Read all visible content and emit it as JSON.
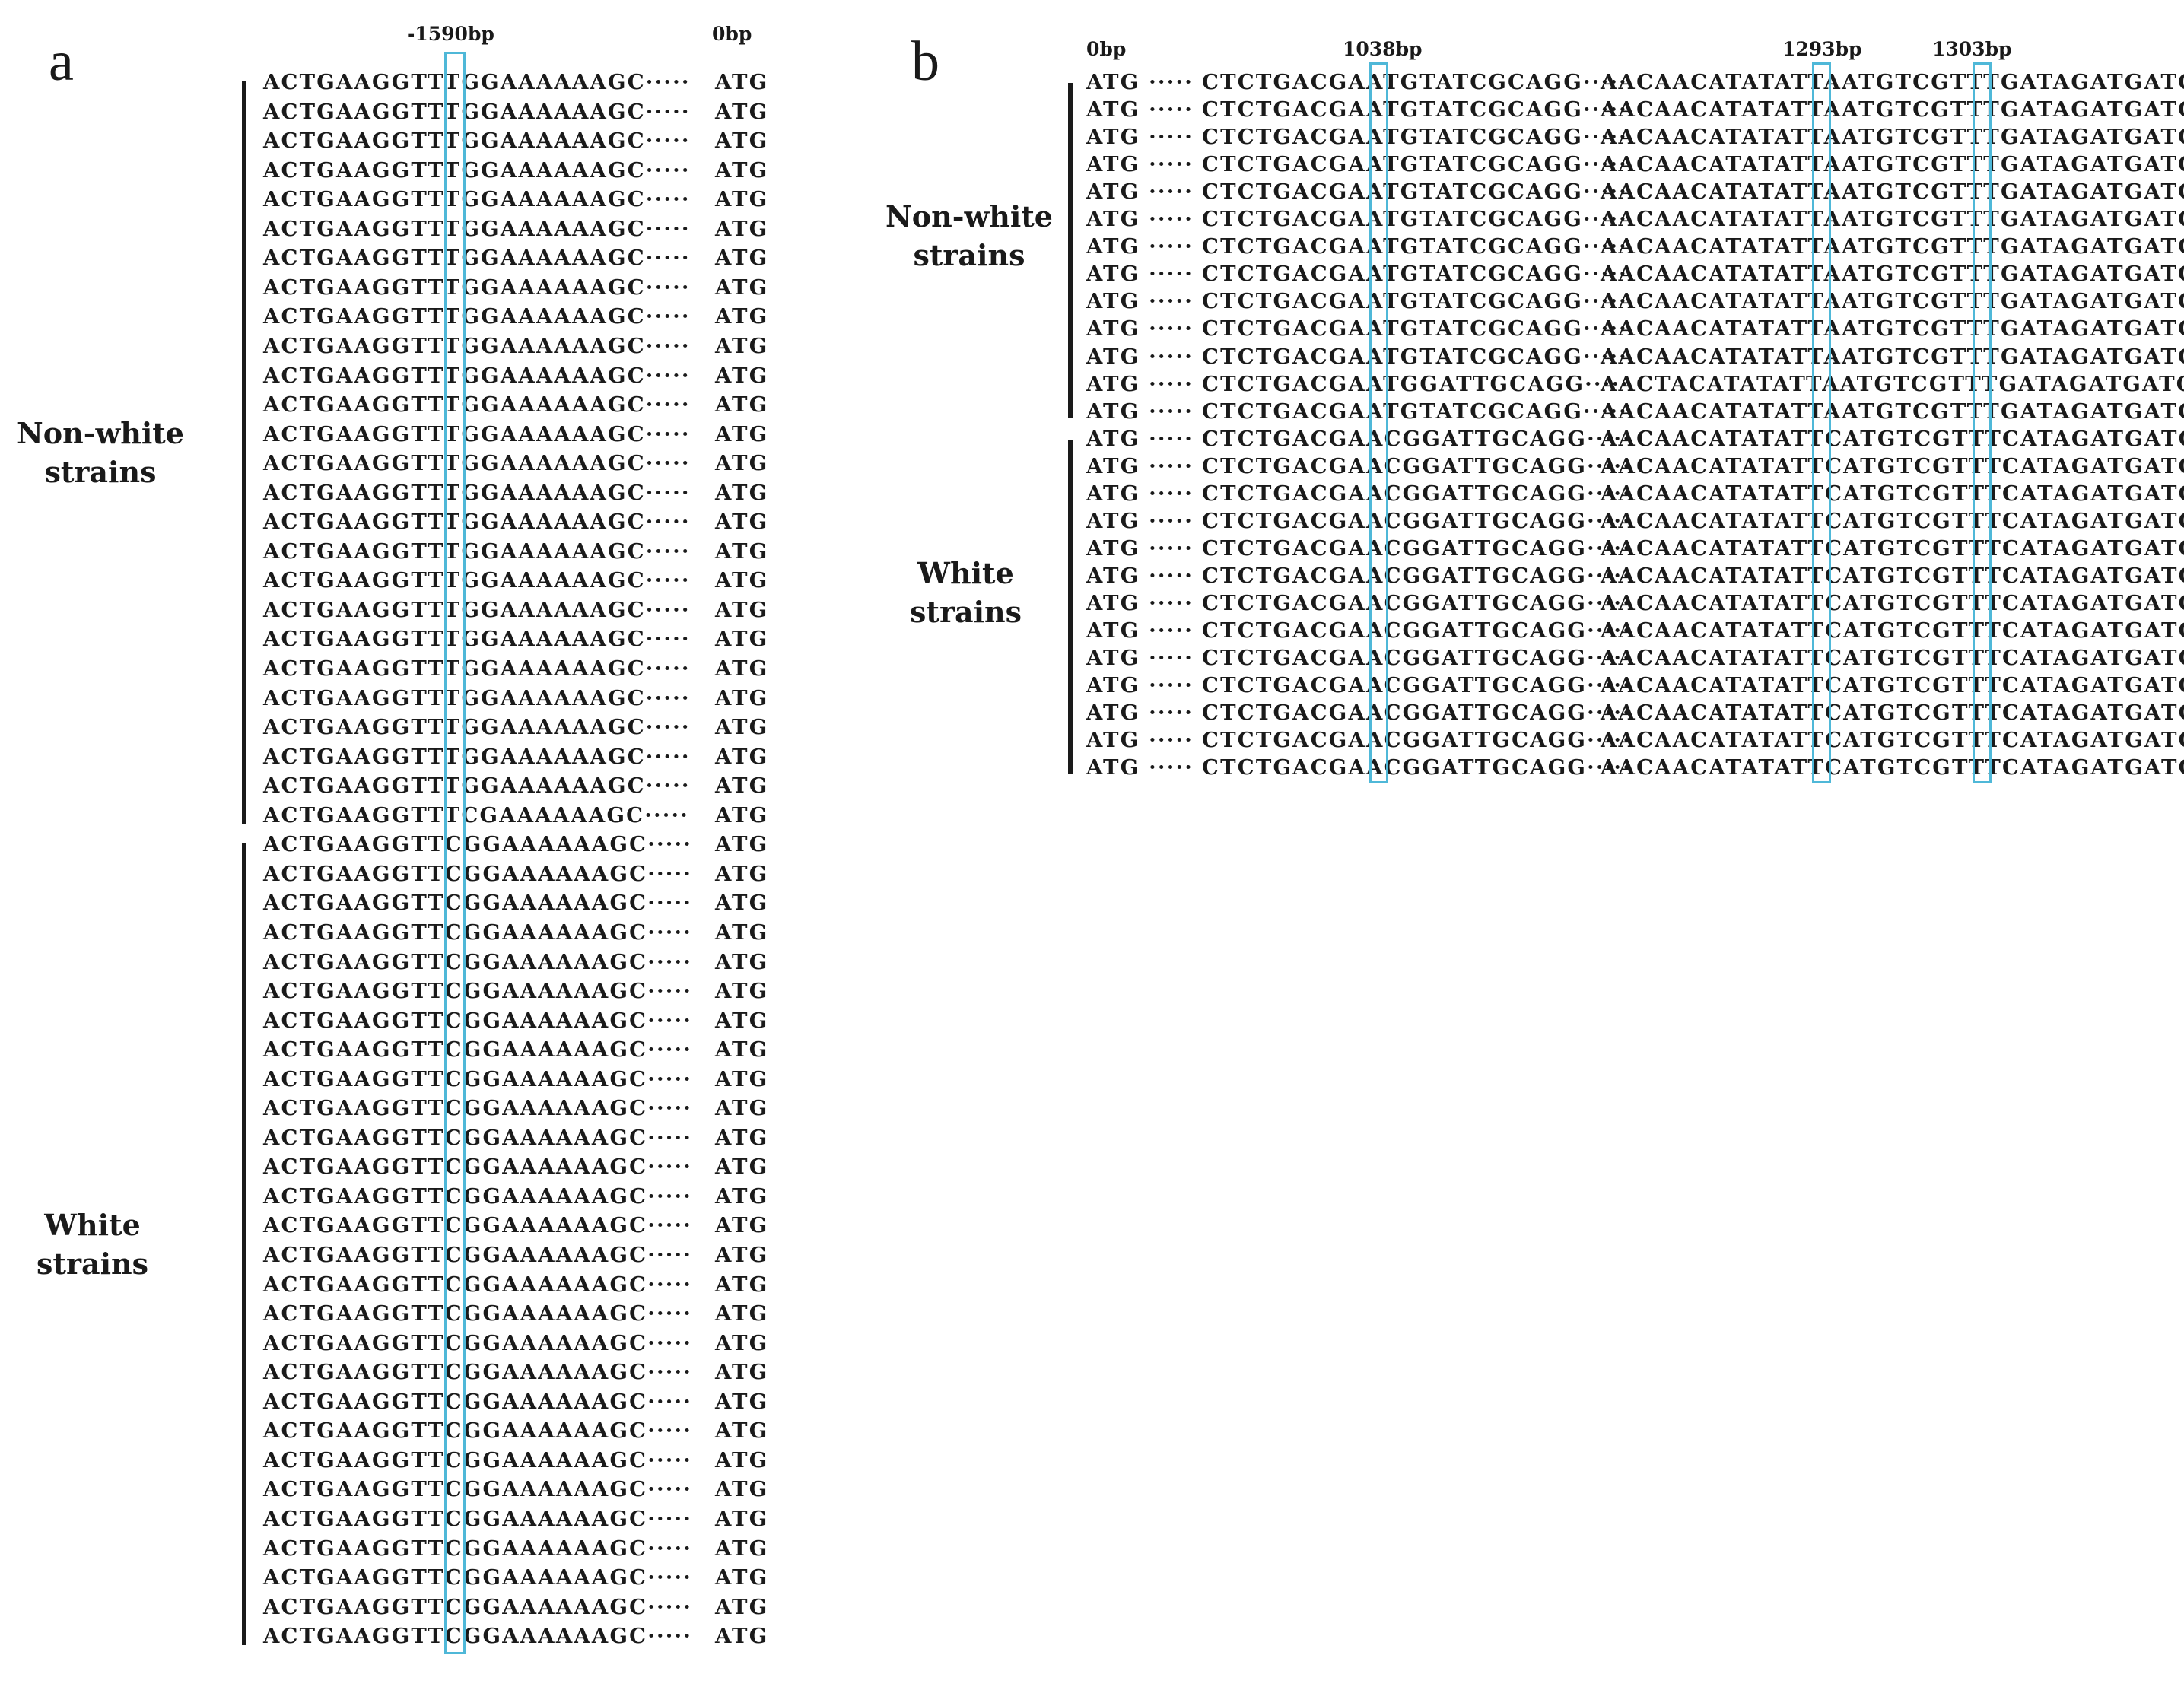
{
  "panels": {
    "a": {
      "letter": "a",
      "position_labels": [
        "-1590bp",
        "0bp"
      ],
      "groups": [
        {
          "name": "Non-white\nstrains",
          "rows": [
            "ACTGAAGGTTTGGAAAAAAGC·····",
            "ACTGAAGGTTTGGAAAAAAGC·····",
            "ACTGAAGGTTTGGAAAAAAGC·····",
            "ACTGAAGGTTTGGAAAAAAGC·····",
            "ACTGAAGGTTTGGAAAAAAGC·····",
            "ACTGAAGGTTTGGAAAAAAGC·····",
            "ACTGAAGGTTTGGAAAAAAGC·····",
            "ACTGAAGGTTTGGAAAAAAGC·····",
            "ACTGAAGGTTTGGAAAAAAGC·····",
            "ACTGAAGGTTTGGAAAAAAGC·····",
            "ACTGAAGGTTTGGAAAAAAGC·····",
            "ACTGAAGGTTTGGAAAAAAGC·····",
            "ACTGAAGGTTTGGAAAAAAGC·····",
            "ACTGAAGGTTTGGAAAAAAGC·····",
            "ACTGAAGGTTTGGAAAAAAGC·····",
            "ACTGAAGGTTTGGAAAAAAGC·····",
            "ACTGAAGGTTTGGAAAAAAGC·····",
            "ACTGAAGGTTTGGAAAAAAGC·····",
            "ACTGAAGGTTTGGAAAAAAGC·····",
            "ACTGAAGGTTTGGAAAAAAGC·····",
            "ACTGAAGGTTTGGAAAAAAGC·····",
            "ACTGAAGGTTTGGAAAAAAGC·····",
            "ACTGAAGGTTTGGAAAAAAGC·····",
            "ACTGAAGGTTTGGAAAAAAGC·····",
            "ACTGAAGGTTTGGAAAAAAGC·····",
            "ACTGAAGGTTTCGAAAAAAGC·····"
          ]
        },
        {
          "name": "White\nstrains",
          "rows": [
            "ACTGAAGGTTCGGAAAAAAGC·····",
            "ACTGAAGGTTCGGAAAAAAGC·····",
            "ACTGAAGGTTCGGAAAAAAGC·····",
            "ACTGAAGGTTCGGAAAAAAGC·····",
            "ACTGAAGGTTCGGAAAAAAGC·····",
            "ACTGAAGGTTCGGAAAAAAGC·····",
            "ACTGAAGGTTCGGAAAAAAGC·····",
            "ACTGAAGGTTCGGAAAAAAGC·····",
            "ACTGAAGGTTCGGAAAAAAGC·····",
            "ACTGAAGGTTCGGAAAAAAGC·····",
            "ACTGAAGGTTCGGAAAAAAGC·····",
            "ACTGAAGGTTCGGAAAAAAGC·····",
            "ACTGAAGGTTCGGAAAAAAGC·····",
            "ACTGAAGGTTCGGAAAAAAGC·····",
            "ACTGAAGGTTCGGAAAAAAGC·····",
            "ACTGAAGGTTCGGAAAAAAGC·····",
            "ACTGAAGGTTCGGAAAAAAGC·····",
            "ACTGAAGGTTCGGAAAAAAGC·····",
            "ACTGAAGGTTCGGAAAAAAGC·····",
            "ACTGAAGGTTCGGAAAAAAGC·····",
            "ACTGAAGGTTCGGAAAAAAGC·····",
            "ACTGAAGGTTCGGAAAAAAGC·····",
            "ACTGAAGGTTCGGAAAAAAGC·····",
            "ACTGAAGGTTCGGAAAAAAGC·····",
            "ACTGAAGGTTCGGAAAAAAGC·····",
            "ACTGAAGGTTCGGAAAAAAGC·····",
            "ACTGAAGGTTCGGAAAAAAGC·····",
            "ACTGAAGGTTCGGAAAAAAGC·····"
          ]
        }
      ],
      "tail": "ATG"
    },
    "b": {
      "letter": "b",
      "position_labels": [
        "0bp",
        "1038bp",
        "1293bp",
        "1303bp"
      ],
      "head": "ATG ·····",
      "groups": [
        {
          "name": "Non-white\nstrains",
          "rows": [
            [
              "CTCTGACGAATGTATCGCAGG·····",
              "AACAACATATATTAATGTCGTTTGATAGATGATC"
            ],
            [
              "CTCTGACGAATGTATCGCAGG·····",
              "AACAACATATATTAATGTCGTTTGATAGATGATC"
            ],
            [
              "CTCTGACGAATGTATCGCAGG·····",
              "AACAACATATATTAATGTCGTTTGATAGATGATC"
            ],
            [
              "CTCTGACGAATGTATCGCAGG·····",
              "AACAACATATATTAATGTCGTTTGATAGATGATC"
            ],
            [
              "CTCTGACGAATGTATCGCAGG·····",
              "AACAACATATATTAATGTCGTTTGATAGATGATC"
            ],
            [
              "CTCTGACGAATGTATCGCAGG·····",
              "AACAACATATATTAATGTCGTTTGATAGATGATC"
            ],
            [
              "CTCTGACGAATGTATCGCAGG·····",
              "AACAACATATATTAATGTCGTTTGATAGATGATC"
            ],
            [
              "CTCTGACGAATGTATCGCAGG·····",
              "AACAACATATATTAATGTCGTTTGATAGATGATC"
            ],
            [
              "CTCTGACGAATGTATCGCAGG·····",
              "AACAACATATATTAATGTCGTTTGATAGATGATC"
            ],
            [
              "CTCTGACGAATGTATCGCAGG·····",
              "AACAACATATATTAATGTCGTTTGATAGATGATC"
            ],
            [
              "CTCTGACGAATGTATCGCAGG·····",
              "AACAACATATATTAATGTCGTTTGATAGATGATC"
            ],
            [
              "CTCTGACGAATGGATTGCAGG·····",
              "AACTACATATATTAATGTCGTTTGATAGATGATC"
            ],
            [
              "CTCTGACGAATGTATCGCAGG·····",
              "AACAACATATATTAATGTCGTTTGATAGATGATC"
            ]
          ]
        },
        {
          "name": "White\nstrains",
          "rows": [
            [
              "CTCTGACGAACGGATTGCAGG·····",
              "AACAACATATATTCATGTCGTTTCATAGATGATC"
            ],
            [
              "CTCTGACGAACGGATTGCAGG·····",
              "AACAACATATATTCATGTCGTTTCATAGATGATC"
            ],
            [
              "CTCTGACGAACGGATTGCAGG·····",
              "AACAACATATATTCATGTCGTTTCATAGATGATC"
            ],
            [
              "CTCTGACGAACGGATTGCAGG·····",
              "AACAACATATATTCATGTCGTTTCATAGATGATC"
            ],
            [
              "CTCTGACGAACGGATTGCAGG·····",
              "AACAACATATATTCATGTCGTTTCATAGATGATC"
            ],
            [
              "CTCTGACGAACGGATTGCAGG·····",
              "AACAACATATATTCATGTCGTTTCATAGATGATC"
            ],
            [
              "CTCTGACGAACGGATTGCAGG·····",
              "AACAACATATATTCATGTCGTTTCATAGATGATC"
            ],
            [
              "CTCTGACGAACGGATTGCAGG·····",
              "AACAACATATATTCATGTCGTTTCATAGATGATC"
            ],
            [
              "CTCTGACGAACGGATTGCAGG·····",
              "AACAACATATATTCATGTCGTTTCATAGATGATC"
            ],
            [
              "CTCTGACGAACGGATTGCAGG·····",
              "AACAACATATATTCATGTCGTTTCATAGATGATC"
            ],
            [
              "CTCTGACGAACGGATTGCAGG·····",
              "AACAACATATATTCATGTCGTTTCATAGATGATC"
            ],
            [
              "CTCTGACGAACGGATTGCAGG·····",
              "AACAACATATATTCATGTCGTTTCATAGATGATC"
            ],
            [
              "CTCTGACGAACGGATTGCAGG·····",
              "AACAACATATATTCATGTCGTTTCATAGATGATC"
            ]
          ]
        }
      ]
    }
  },
  "colors": {
    "text": "#1a1a1a",
    "highlight_box": "#4fb8d8"
  }
}
